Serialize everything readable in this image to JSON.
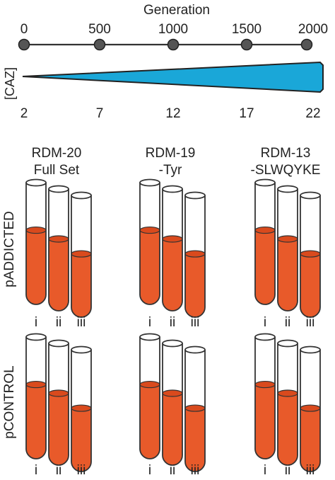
{
  "timeline": {
    "title": "Generation",
    "generations": [
      "0",
      "500",
      "1000",
      "1500",
      "2000"
    ],
    "caz_label": "[CAZ]",
    "concentrations": [
      "2",
      "7",
      "12",
      "17",
      "22"
    ]
  },
  "colors": {
    "wedge": "#1aa7d8",
    "liquid": "#e85a2a",
    "liquid_top": "#d94a1d",
    "node": "#555555"
  },
  "columns": [
    {
      "line1": "RDM-20",
      "line2": "Full Set"
    },
    {
      "line1": "RDM-19",
      "line2": "-Tyr"
    },
    {
      "line1": "RDM-13",
      "line2": "-SLWQYKE"
    }
  ],
  "rows": [
    {
      "label": "pADDICTED"
    },
    {
      "label": "pCONTROL"
    }
  ],
  "tube_labels": [
    "i",
    "ii",
    "iii"
  ],
  "fill_levels": [
    [
      [
        0.61,
        0.59,
        0.52
      ],
      [
        0.61,
        0.59,
        0.52
      ],
      [
        0.61,
        0.59,
        0.52
      ]
    ],
    [
      [
        0.61,
        0.59,
        0.52
      ],
      [
        0.61,
        0.59,
        0.52
      ],
      [
        0.61,
        0.59,
        0.52
      ]
    ]
  ]
}
